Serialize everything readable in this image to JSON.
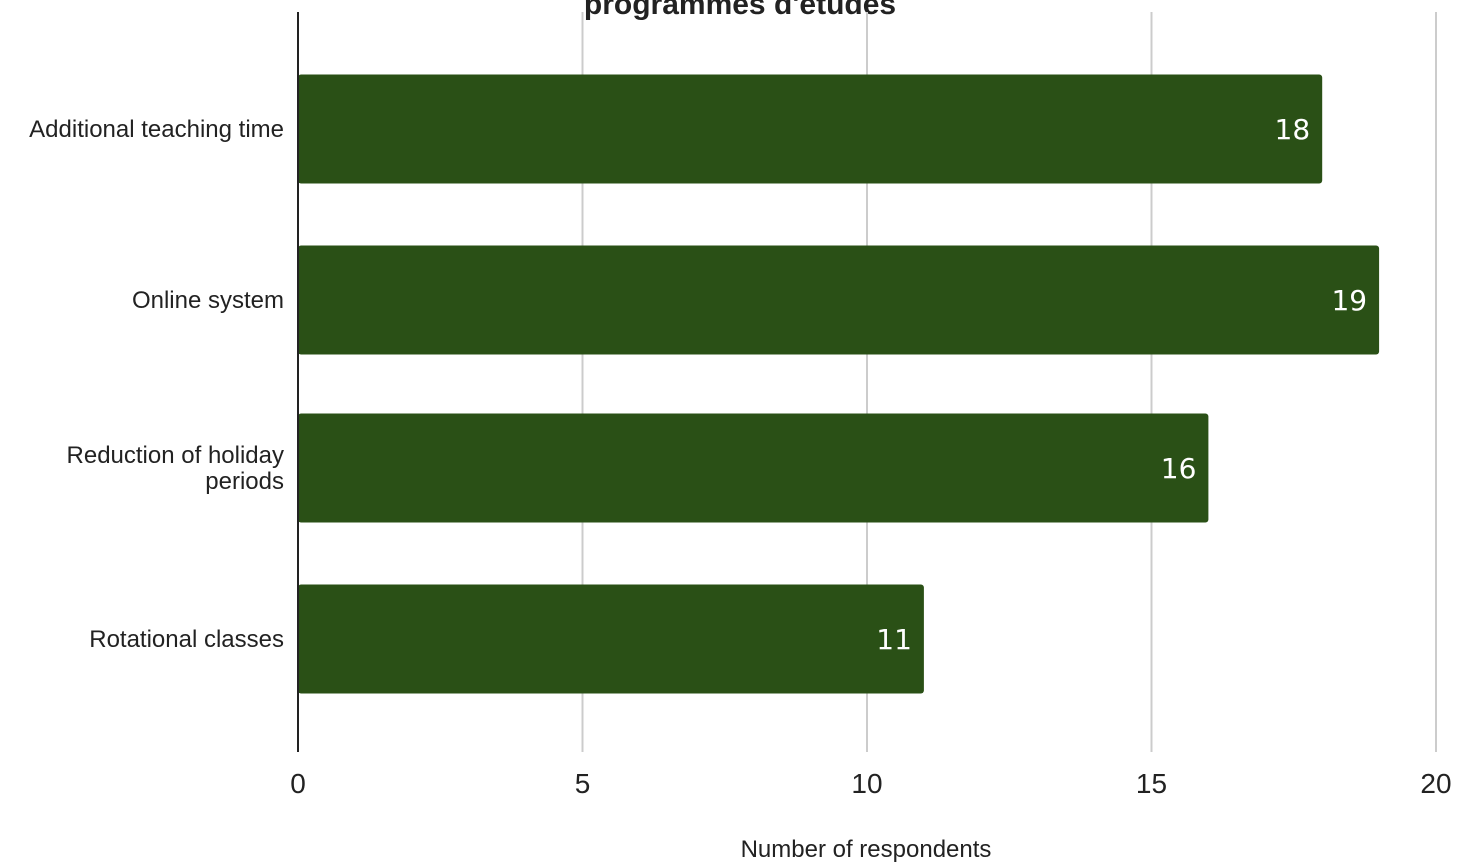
{
  "chart_data": {
    "type": "bar",
    "orientation": "horizontal",
    "title": "programmes d'études",
    "categories": [
      "Additional teaching time",
      "Online system",
      "Reduction of holiday periods",
      "Rotational classes"
    ],
    "category_lines": [
      [
        "Additional teaching time"
      ],
      [
        "Online system"
      ],
      [
        "Reduction of holiday",
        "periods"
      ],
      [
        "Rotational classes"
      ]
    ],
    "values": [
      18,
      19,
      16,
      11
    ],
    "data_labels": [
      "18",
      "19",
      "16",
      "11"
    ],
    "xlabel": "Number of respondents",
    "ylabel": "",
    "xlim": [
      0,
      20
    ],
    "xticks": [
      0,
      5,
      10,
      15,
      20
    ],
    "xtick_labels": [
      "0",
      "5",
      "10",
      "15",
      "20"
    ],
    "grid": "vertical",
    "legend": "none",
    "colors": {
      "bar": "#2a5016",
      "grid": "#cccccc",
      "axis": "#222222"
    }
  }
}
